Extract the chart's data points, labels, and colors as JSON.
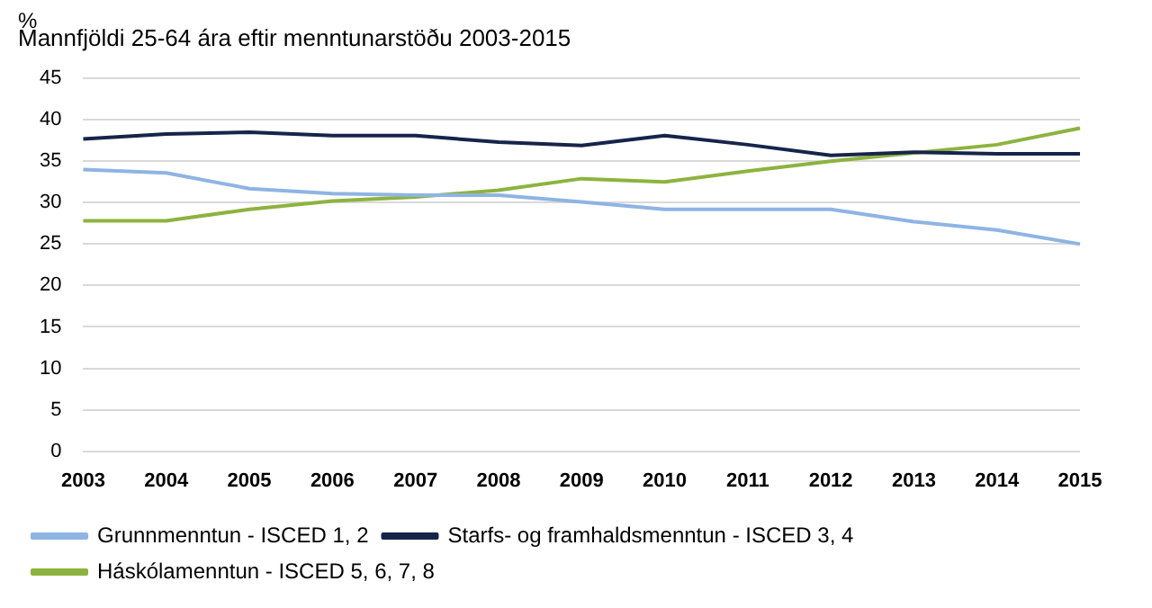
{
  "chart_data": {
    "type": "line",
    "title": "Mannfjöldi 25-64 ára eftir menntunarstöðu 2003-2015",
    "ylabel": "%",
    "categories": [
      "2003",
      "2004",
      "2005",
      "2006",
      "2007",
      "2008",
      "2009",
      "2010",
      "2011",
      "2012",
      "2013",
      "2014",
      "2015"
    ],
    "series": [
      {
        "name": "Grunnmenntun - ISCED 1, 2",
        "color": "#8eb4e3",
        "values": [
          34.0,
          33.6,
          31.7,
          31.1,
          30.9,
          30.9,
          30.1,
          29.2,
          29.2,
          29.2,
          27.7,
          26.7,
          25.0
        ]
      },
      {
        "name": "Starfs- og framhaldsmenntun - ISCED 3, 4",
        "color": "#17244a",
        "values": [
          37.7,
          38.3,
          38.5,
          38.1,
          38.1,
          37.3,
          36.9,
          38.1,
          37.0,
          35.7,
          36.1,
          35.9,
          35.9
        ]
      },
      {
        "name": "Háskólamenntun - ISCED 5, 6, 7, 8",
        "color": "#8db33f",
        "values": [
          27.8,
          27.8,
          29.2,
          30.2,
          30.7,
          31.5,
          32.9,
          32.5,
          33.8,
          35.0,
          36.0,
          37.0,
          39.0
        ]
      }
    ],
    "ylim": [
      0,
      45
    ],
    "yticks": [
      0,
      5,
      10,
      15,
      20,
      25,
      30,
      35,
      40,
      45
    ],
    "grid": "y",
    "legend": "bottom",
    "marker": "none",
    "line_style": "solid"
  }
}
